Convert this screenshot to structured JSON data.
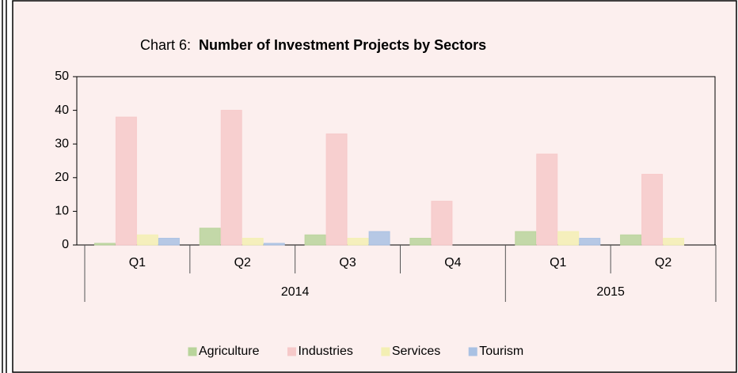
{
  "chart_data": {
    "type": "bar",
    "title_label": "Chart 6:",
    "title": "Number of Investment Projects by Sectors",
    "categories": [
      "Q1",
      "Q2",
      "Q3",
      "Q4",
      "Q1",
      "Q2"
    ],
    "category_groups": [
      "2014",
      "2014",
      "2014",
      "2014",
      "2015",
      "2015"
    ],
    "series": [
      {
        "name": "Agriculture",
        "color": "#b9d49b",
        "values": [
          0.5,
          5,
          3,
          2,
          4,
          3
        ]
      },
      {
        "name": "Industries",
        "color": "#f6c9c9",
        "values": [
          38,
          40,
          33,
          13,
          27,
          21
        ]
      },
      {
        "name": "Services",
        "color": "#f3efb3",
        "values": [
          3,
          2,
          2,
          0,
          4,
          2
        ]
      },
      {
        "name": "Tourism",
        "color": "#a9c1e3",
        "values": [
          2,
          0.5,
          4,
          0,
          2,
          0
        ]
      }
    ],
    "ylim": [
      0,
      50
    ],
    "yticks": [
      0,
      10,
      20,
      30,
      40,
      50
    ],
    "legend": "bottom"
  }
}
